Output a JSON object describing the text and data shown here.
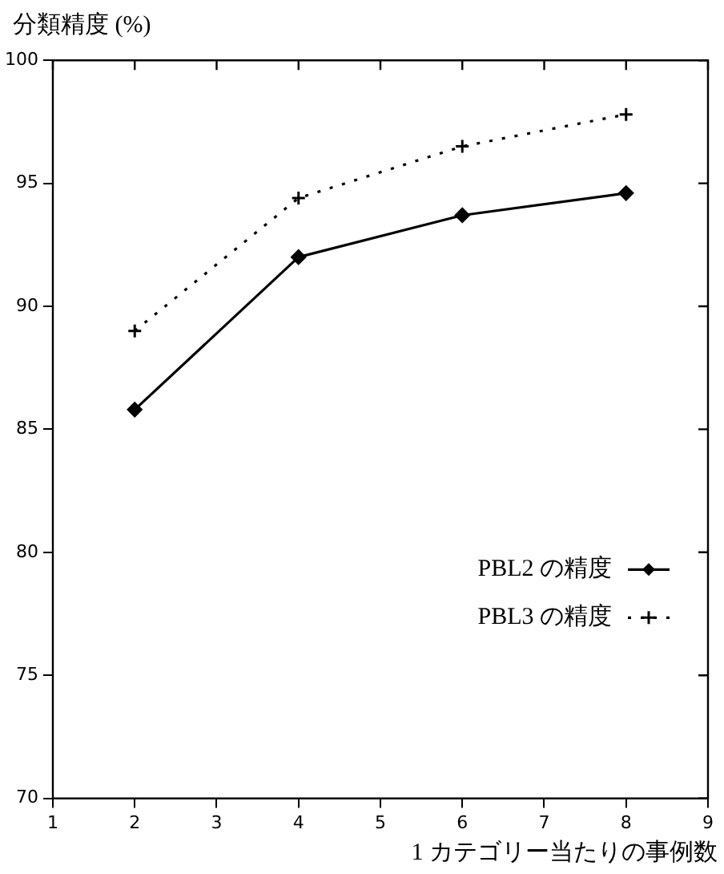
{
  "chart_data": {
    "type": "line",
    "ylabel": "分類精度 (%)",
    "xlabel": "1 カテゴリー当たりの事例数",
    "x": [
      2,
      4,
      6,
      8
    ],
    "series": [
      {
        "name": "PBL2 の精度",
        "color": "#000000",
        "values": [
          85.8,
          92.0,
          93.7,
          94.6
        ],
        "marker": "diamond",
        "line_style": "solid"
      },
      {
        "name": "PBL3 の精度",
        "color": "#000000",
        "values": [
          89.0,
          94.4,
          96.5,
          97.8
        ],
        "marker": "cross",
        "line_style": "dotted"
      }
    ],
    "xlim": [
      1,
      9
    ],
    "xticks": [
      1,
      2,
      3,
      4,
      5,
      6,
      7,
      8,
      9
    ],
    "ylim": [
      70,
      100
    ],
    "yticks": [
      70,
      75,
      80,
      85,
      90,
      95,
      100
    ],
    "grid": false,
    "legend": "bottom right"
  }
}
